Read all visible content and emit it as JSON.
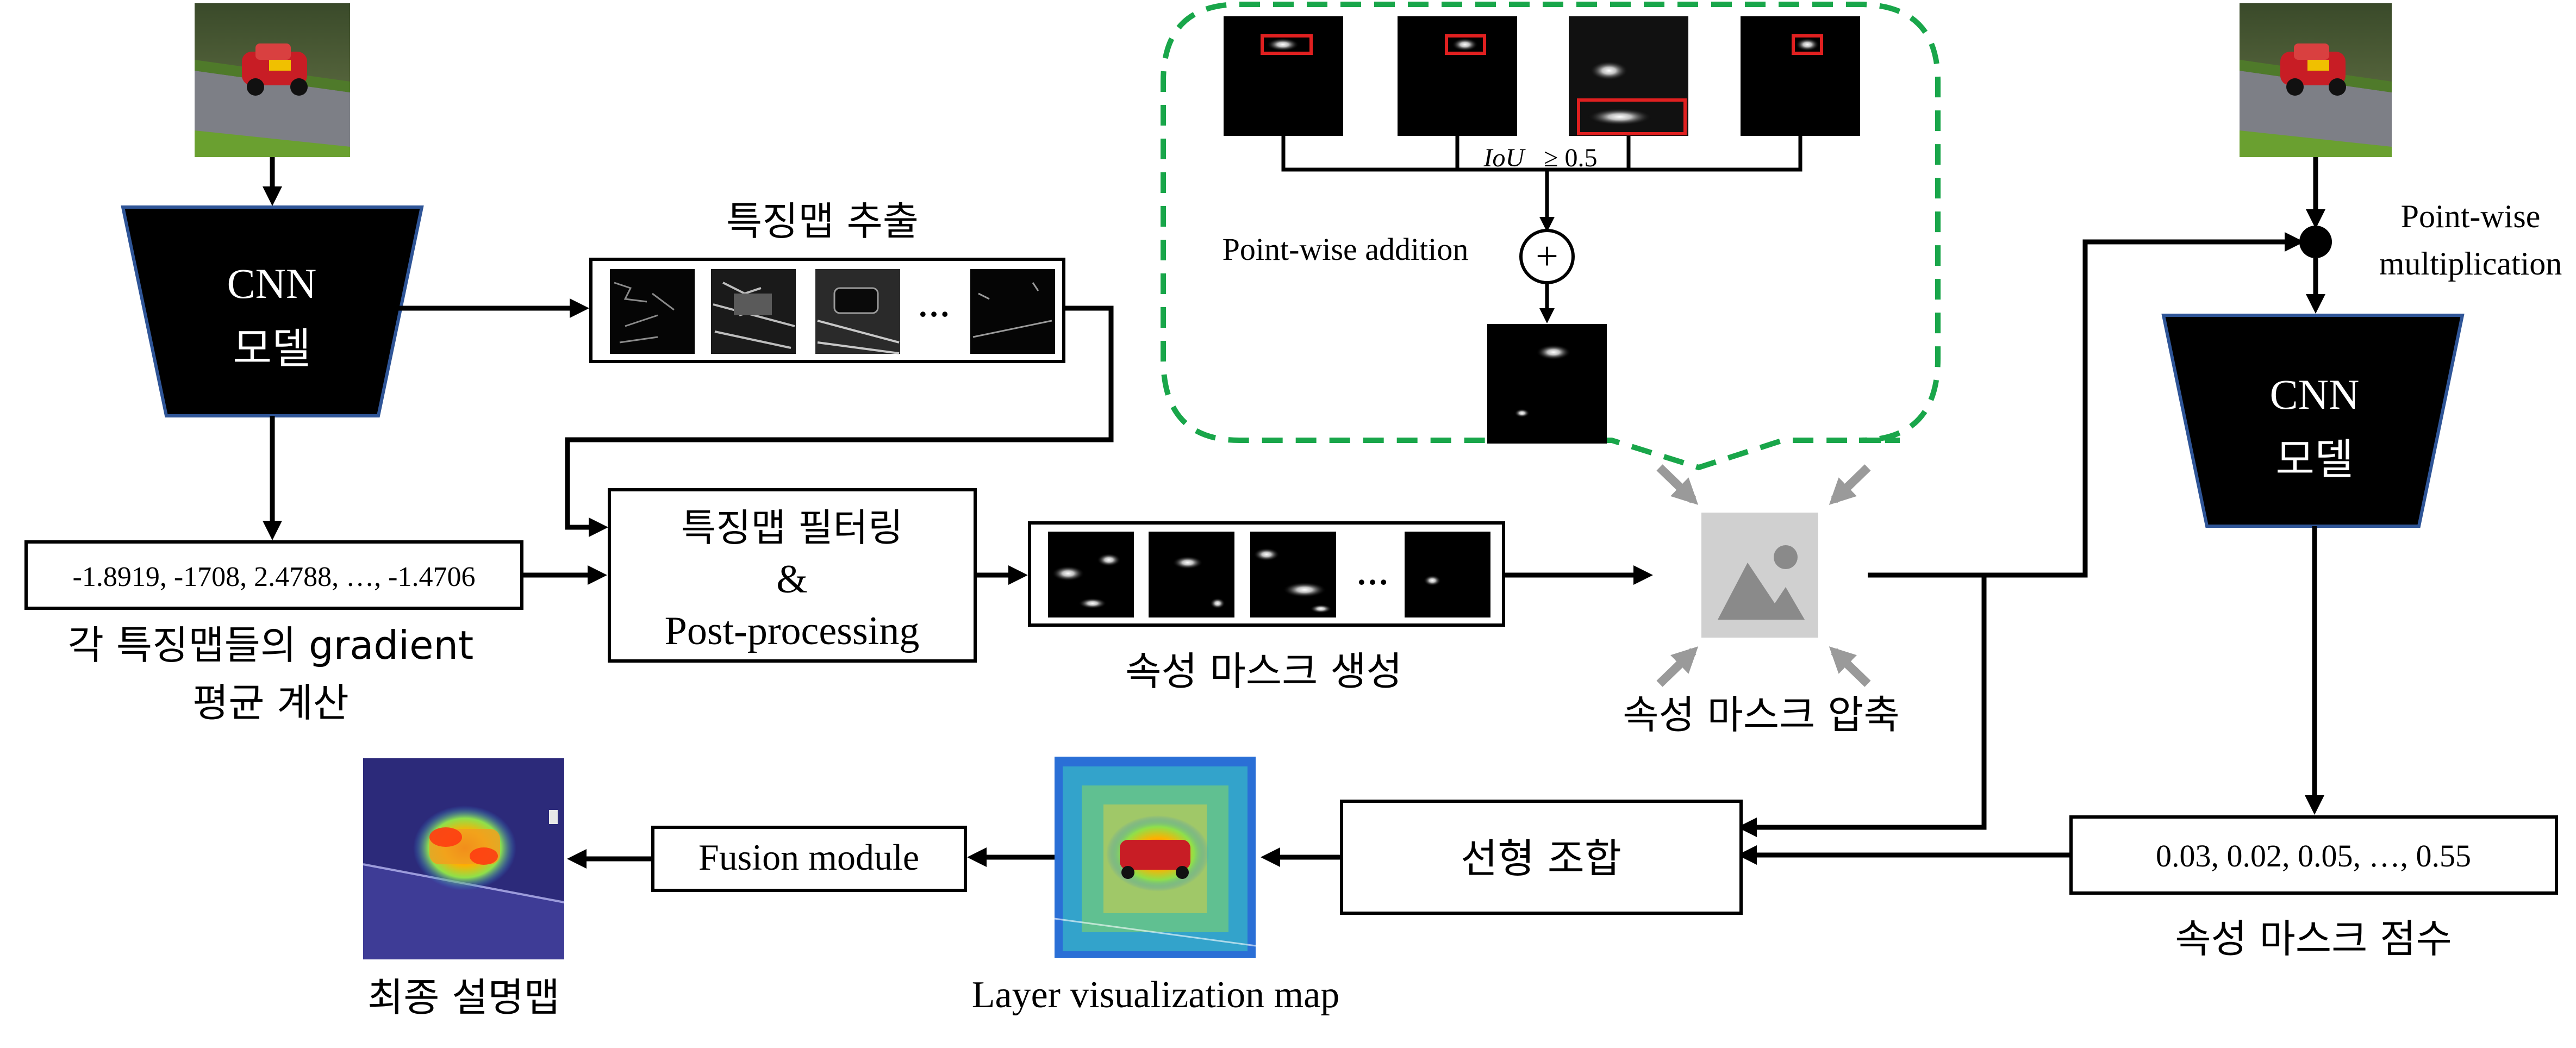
{
  "cnn_model_left": {
    "line1": "CNN",
    "line2": "모델"
  },
  "cnn_model_right": {
    "line1": "CNN",
    "line2": "모델"
  },
  "feature_extraction_label": "특징맵 추출",
  "gradient_values_box": "-1.8919, -1708, 2.4788, …, -1.4706",
  "gradient_caption": {
    "line1": "각 특징맵들의 gradient",
    "line2": "평균 계산"
  },
  "filtering_box": {
    "line1": "특징맵 필터링",
    "line2": "&",
    "line3": "Post-processing"
  },
  "attribute_mask_generation_label": "속성 마스크 생성",
  "ellipsis": "…",
  "iou_label": {
    "italic": "IoU",
    "rest": "≥  0.5"
  },
  "pointwise_addition_label": "Point-wise addition",
  "plus_symbol": "+",
  "mask_compression_label": "속성 마스크 압축",
  "pointwise_multiplication_label": {
    "line1": "Point-wise",
    "line2": "multiplication"
  },
  "score_values_box": "0.03, 0.02, 0.05, …, 0.55",
  "mask_score_label": "속성 마스크 점수",
  "linear_combination_box": "선형 조합",
  "layer_visualization_label": "Layer visualization map",
  "fusion_module_box": "Fusion module",
  "final_explanation_label": "최종 설명맵",
  "colors": {
    "cnn_fill": "#000000",
    "cnn_stroke": "#2f5597",
    "dashed_group": "#19a64a",
    "bbox_red": "#e02020",
    "placeholder_bg": "#d0d0d0",
    "placeholder_icon": "#8a8a8a",
    "input_arrows": "#9a9a9a"
  }
}
